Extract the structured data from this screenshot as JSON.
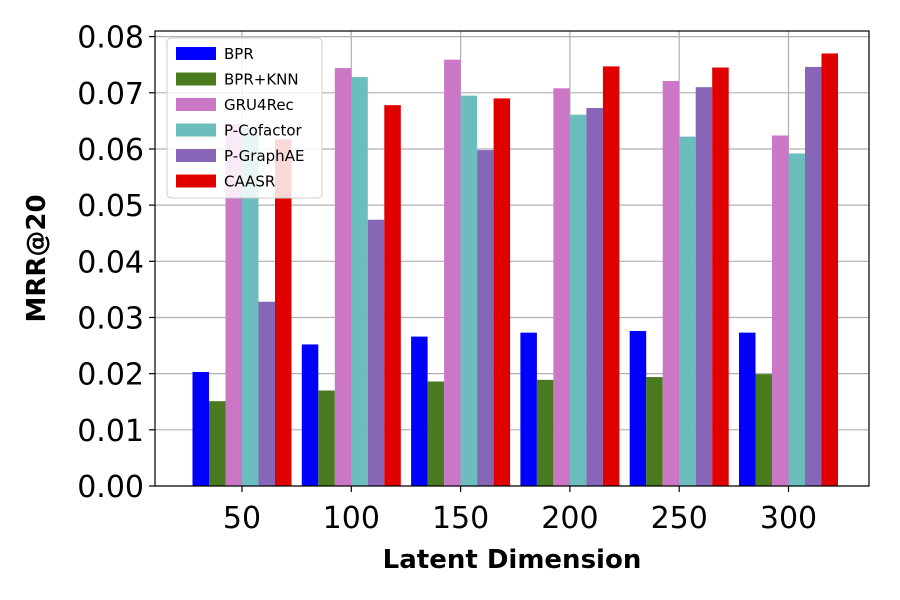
{
  "chart_data": {
    "type": "bar",
    "xlabel": "Latent Dimension",
    "ylabel": "MRR@20",
    "categories": [
      "50",
      "100",
      "150",
      "200",
      "250",
      "300"
    ],
    "ylim": [
      0,
      0.081
    ],
    "yticks": [
      "0.00",
      "0.01",
      "0.02",
      "0.03",
      "0.04",
      "0.05",
      "0.06",
      "0.07",
      "0.08"
    ],
    "ytick_values": [
      0,
      0.01,
      0.02,
      0.03,
      0.04,
      0.05,
      0.06,
      0.07,
      0.08
    ],
    "grid": true,
    "legend_position": "top-left",
    "series": [
      {
        "name": "BPR",
        "color": "#0000ff",
        "values": [
          0.0203,
          0.0252,
          0.0266,
          0.0273,
          0.0276,
          0.0273
        ]
      },
      {
        "name": "BPR+KNN",
        "color": "#4a7a1e",
        "values": [
          0.0151,
          0.017,
          0.0186,
          0.0189,
          0.0194,
          0.0199
        ]
      },
      {
        "name": "GRU4Rec",
        "color": "#cc77c6",
        "values": [
          0.0645,
          0.0744,
          0.0759,
          0.0708,
          0.0721,
          0.0624
        ]
      },
      {
        "name": "P-Cofactor",
        "color": "#6cbebe",
        "values": [
          0.0638,
          0.0728,
          0.0695,
          0.0661,
          0.0622,
          0.0592
        ]
      },
      {
        "name": "P-GraphAE",
        "color": "#8766b8",
        "values": [
          0.0328,
          0.0474,
          0.0598,
          0.0673,
          0.071,
          0.0746
        ]
      },
      {
        "name": "CAASR",
        "color": "#e00000",
        "values": [
          0.0617,
          0.0678,
          0.069,
          0.0747,
          0.0745,
          0.077
        ]
      }
    ]
  }
}
